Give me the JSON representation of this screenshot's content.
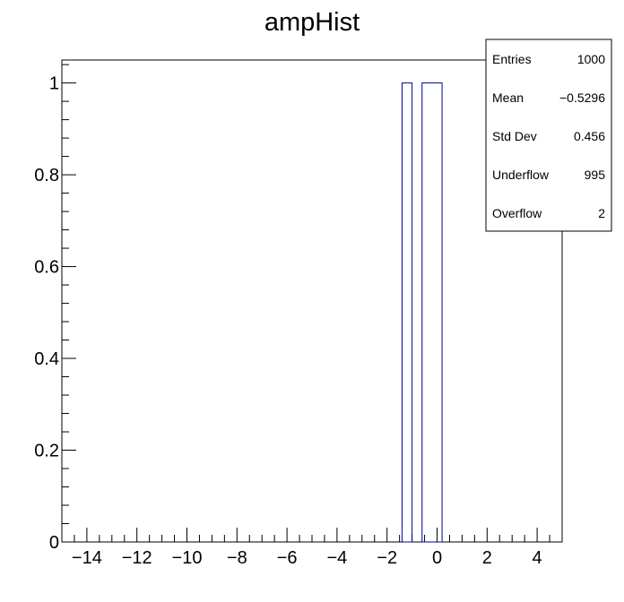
{
  "chart_data": {
    "type": "bar",
    "title": "ampHist",
    "xlabel": "",
    "ylabel": "",
    "xlim": [
      -15,
      5
    ],
    "ylim": [
      0,
      1.05
    ],
    "x_ticks": [
      -14,
      -12,
      -10,
      -8,
      -6,
      -4,
      -2,
      0,
      2,
      4
    ],
    "x_tick_labels": [
      "−14",
      "−12",
      "−10",
      "−8",
      "−6",
      "−4",
      "−2",
      "0",
      "2",
      "4"
    ],
    "y_ticks": [
      0,
      0.2,
      0.4,
      0.6,
      0.8,
      1
    ],
    "y_tick_labels": [
      "0",
      "0.2",
      "0.4",
      "0.6",
      "0.8",
      "1"
    ],
    "bins": [
      {
        "x0": -1.4,
        "x1": -1.0,
        "value": 1
      },
      {
        "x0": -0.6,
        "x1": 0.2,
        "value": 1
      }
    ],
    "line_color": "#000099",
    "grid": false,
    "legend": "none"
  },
  "stats_box": {
    "placement": "top-right",
    "rows": [
      {
        "label": "Entries",
        "value": "1000"
      },
      {
        "label": "Mean",
        "value": "−0.5296"
      },
      {
        "label": "Std Dev",
        "value": "0.456"
      },
      {
        "label": "Underflow",
        "value": "995"
      },
      {
        "label": "Overflow",
        "value": "2"
      }
    ]
  }
}
